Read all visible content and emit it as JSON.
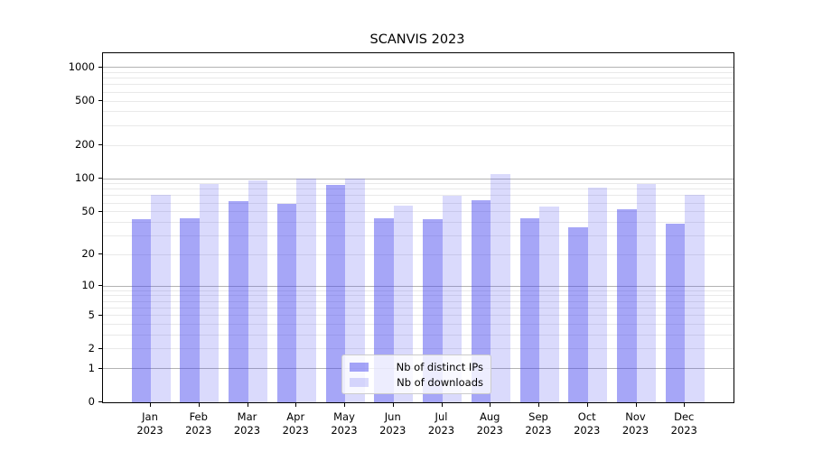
{
  "title": "SCANVIS 2023",
  "chart_data": {
    "type": "bar",
    "title": "SCANVIS 2023",
    "categories": [
      "Jan 2023",
      "Feb 2023",
      "Mar 2023",
      "Apr 2023",
      "May 2023",
      "Jun 2023",
      "Jul 2023",
      "Aug 2023",
      "Sep 2023",
      "Oct 2023",
      "Nov 2023",
      "Dec 2023"
    ],
    "series": [
      {
        "name": "Nb of distinct IPs",
        "values": [
          43,
          44,
          63,
          59,
          88,
          44,
          43,
          64,
          44,
          36,
          53,
          39
        ]
      },
      {
        "name": "Nb of downloads",
        "values": [
          72,
          89,
          97,
          101,
          100,
          57,
          70,
          109,
          56,
          83,
          90,
          72
        ]
      }
    ],
    "xlabel": "",
    "ylabel": "",
    "y_scale": "log1p",
    "y_tick_values": [
      0,
      1,
      2,
      5,
      10,
      20,
      50,
      100,
      200,
      500,
      1000
    ],
    "y_major_grid_values": [
      1,
      10,
      100,
      1000
    ],
    "y_minor_grid_values": [
      2,
      3,
      4,
      5,
      6,
      7,
      8,
      9,
      20,
      30,
      40,
      50,
      60,
      70,
      80,
      90,
      200,
      300,
      400,
      500,
      600,
      700,
      800,
      900
    ],
    "ylim": [
      0,
      1250
    ],
    "grid": "both",
    "legend_position": "lower center"
  },
  "axes": {
    "y_tick_labels": [
      "0",
      "1",
      "2",
      "5",
      "10",
      "20",
      "50",
      "100",
      "200",
      "500",
      "1000"
    ],
    "x_tick_months": [
      "Jan",
      "Feb",
      "Mar",
      "Apr",
      "May",
      "Jun",
      "Jul",
      "Aug",
      "Sep",
      "Oct",
      "Nov",
      "Dec"
    ],
    "x_tick_year": "2023"
  },
  "legend": {
    "items": [
      {
        "label": "Nb of distinct IPs",
        "color": "rgba(68,68,238,0.48)"
      },
      {
        "label": "Nb of downloads",
        "color": "rgba(68,68,238,0.20)"
      }
    ]
  },
  "colors": {
    "bar_distinct_ips": "rgba(68,68,238,0.48)",
    "bar_downloads": "rgba(68,68,238,0.20)",
    "grid_major": "#b3b3b3",
    "grid_minor": "#e9e9e9",
    "axis": "#000000",
    "background": "#ffffff"
  }
}
